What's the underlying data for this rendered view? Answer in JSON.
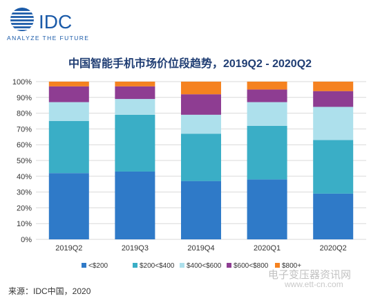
{
  "brand": {
    "name": "IDC",
    "tagline": "ANALYZE THE FUTURE",
    "color": "#1a5aa8"
  },
  "source": "来源：IDC中国，2020",
  "watermark": {
    "name": "电子变压器资讯网",
    "url": "www.ett-cn.com"
  },
  "chart_data": {
    "type": "bar",
    "stacked": true,
    "title": "中国智能手机市场价位段趋势，2019Q2 - 2020Q2",
    "xlabel": "",
    "ylabel": "",
    "ylim": [
      0,
      100
    ],
    "y_ticks": [
      "0%",
      "10%",
      "20%",
      "30%",
      "40%",
      "50%",
      "60%",
      "70%",
      "80%",
      "90%",
      "100%"
    ],
    "grid": true,
    "legend_position": "bottom",
    "categories": [
      "2019Q2",
      "2019Q3",
      "2019Q4",
      "2020Q1",
      "2020Q2"
    ],
    "series": [
      {
        "name": "<$200",
        "color": "#2f7ac8",
        "values": [
          42,
          43,
          37,
          38,
          29
        ]
      },
      {
        "name": "$200<$400",
        "color": "#3aaec6",
        "values": [
          33,
          36,
          30,
          34,
          34
        ]
      },
      {
        "name": "$400<$600",
        "color": "#ade0ec",
        "values": [
          12,
          10,
          12,
          15,
          21
        ]
      },
      {
        "name": "$600<$800",
        "color": "#8e3d92",
        "values": [
          10,
          8,
          13,
          8,
          10
        ]
      },
      {
        "name": "$800+",
        "color": "#f58220",
        "values": [
          3,
          3,
          8,
          5,
          6
        ]
      }
    ]
  }
}
